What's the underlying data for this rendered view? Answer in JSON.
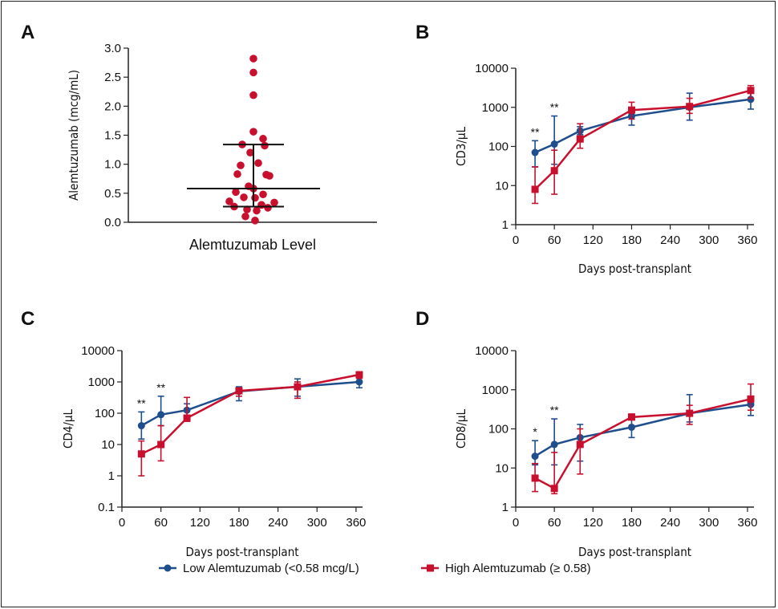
{
  "colors": {
    "low": "#1f4e8c",
    "high": "#c8102e",
    "dots": "#c8102e",
    "axis": "#222222"
  },
  "chart_data": [
    {
      "panel": "A",
      "type": "scatter",
      "category": "Alemtuzumab Level",
      "ylabel": "Alemtuzumab (mcg/mL)",
      "ylim": [
        0,
        3.0
      ],
      "yticks": [
        "0.0",
        "0.5",
        "1.0",
        "1.5",
        "2.0",
        "2.5",
        "3.0"
      ],
      "values": [
        2.82,
        2.58,
        2.19,
        1.56,
        1.44,
        1.34,
        1.32,
        1.2,
        1.02,
        0.98,
        0.83,
        0.82,
        0.8,
        0.62,
        0.58,
        0.52,
        0.48,
        0.43,
        0.42,
        0.36,
        0.34,
        0.3,
        0.27,
        0.25,
        0.22,
        0.2,
        0.1,
        0.03
      ],
      "median": 0.58,
      "range_low": 0.27,
      "range_high": 1.34
    },
    {
      "panel": "B",
      "type": "line",
      "ylabel": "CD3/μL",
      "xlabel": "Days post-transplant",
      "log_y": true,
      "ylim": [
        1,
        10000
      ],
      "yticks": [
        "1",
        "10",
        "100",
        "1000",
        "10000"
      ],
      "xlim": [
        0,
        370
      ],
      "xticks": [
        "0",
        "60",
        "120",
        "180",
        "240",
        "300",
        "360"
      ],
      "series": [
        {
          "name": "Low Alemtuzumab (<0.58 mcg/L)",
          "x": [
            30,
            60,
            100,
            180,
            270,
            365
          ],
          "y": [
            70,
            115,
            250,
            600,
            1000,
            1600
          ],
          "err_low": [
            30,
            35,
            200,
            350,
            470,
            900
          ],
          "err_high": [
            140,
            600,
            320,
            900,
            2300,
            2700
          ]
        },
        {
          "name": "High Alemtuzumab (≥ 0.58)",
          "x": [
            30,
            60,
            100,
            180,
            270,
            365
          ],
          "y": [
            8,
            24,
            155,
            850,
            1050,
            2700
          ],
          "err_low": [
            3.5,
            6,
            90,
            500,
            700,
            1700
          ],
          "err_high": [
            30,
            80,
            380,
            1350,
            1700,
            3600
          ]
        }
      ],
      "annotations": [
        {
          "x": 30,
          "text": "**"
        },
        {
          "x": 60,
          "text": "**"
        }
      ]
    },
    {
      "panel": "C",
      "type": "line",
      "ylabel": "CD4/μL",
      "xlabel": "Days post-transplant",
      "log_y": true,
      "ylim": [
        0.1,
        10000
      ],
      "yticks": [
        "0.1",
        "1",
        "10",
        "100",
        "1000",
        "10000"
      ],
      "xlim": [
        0,
        370
      ],
      "xticks": [
        "0",
        "60",
        "120",
        "180",
        "240",
        "300",
        "360"
      ],
      "series": [
        {
          "name": "Low Alemtuzumab (<0.58 mcg/L)",
          "x": [
            30,
            60,
            100,
            180,
            270,
            365
          ],
          "y": [
            40,
            90,
            125,
            500,
            700,
            1000
          ],
          "err_low": [
            15,
            40,
            75,
            250,
            350,
            650
          ],
          "err_high": [
            110,
            350,
            200,
            700,
            1250,
            1500
          ]
        },
        {
          "name": "High Alemtuzumab (≥ 0.58)",
          "x": [
            30,
            60,
            100,
            180,
            270,
            365
          ],
          "y": [
            5,
            10,
            70,
            520,
            700,
            1700
          ],
          "err_low": [
            1,
            3,
            55,
            350,
            300,
            1300
          ],
          "err_high": [
            13,
            40,
            320,
            650,
            1000,
            2000
          ]
        }
      ],
      "annotations": [
        {
          "x": 30,
          "text": "**"
        },
        {
          "x": 60,
          "text": "**"
        }
      ]
    },
    {
      "panel": "D",
      "type": "line",
      "ylabel": "CD8/μL",
      "xlabel": "Days post-transplant",
      "log_y": true,
      "ylim": [
        1,
        10000
      ],
      "yticks": [
        "1",
        "10",
        "100",
        "1000",
        "10000"
      ],
      "xlim": [
        0,
        370
      ],
      "xticks": [
        "0",
        "60",
        "120",
        "180",
        "240",
        "300",
        "360"
      ],
      "series": [
        {
          "name": "Low Alemtuzumab (<0.58 mcg/L)",
          "x": [
            30,
            60,
            100,
            180,
            270,
            365
          ],
          "y": [
            20,
            40,
            60,
            110,
            250,
            420
          ],
          "err_low": [
            12,
            12,
            15,
            60,
            150,
            220
          ],
          "err_high": [
            50,
            180,
            130,
            230,
            750,
            600
          ]
        },
        {
          "name": "High Alemtuzumab (≥ 0.58)",
          "x": [
            30,
            60,
            100,
            180,
            270,
            365
          ],
          "y": [
            5.5,
            3,
            40,
            200,
            250,
            580
          ],
          "err_low": [
            2.5,
            2.2,
            7,
            180,
            130,
            300
          ],
          "err_high": [
            13,
            25,
            100,
            240,
            400,
            1400
          ]
        }
      ],
      "annotations": [
        {
          "x": 30,
          "text": "*"
        },
        {
          "x": 60,
          "text": "**"
        }
      ]
    }
  ],
  "legend": [
    {
      "label": "Low Alemtuzumab (<0.58 mcg/L)",
      "marker": "circle",
      "color": "#1f4e8c"
    },
    {
      "label": "High Alemtuzumab (≥ 0.58)",
      "marker": "square",
      "color": "#c8102e"
    }
  ]
}
